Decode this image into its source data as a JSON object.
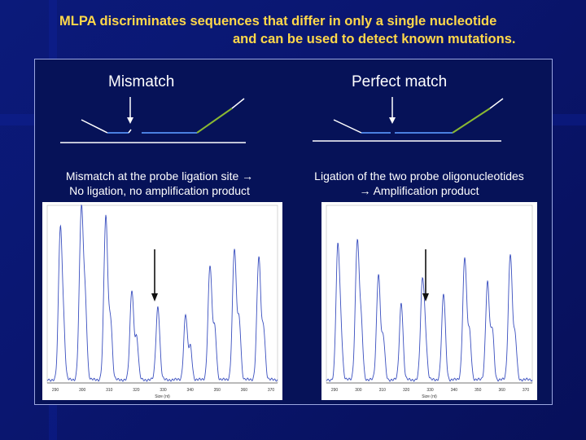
{
  "slide": {
    "title_line1": "MLPA discriminates sequences that differ in only a single nucleotide",
    "title_line2": "and can be used to detect known mutations."
  },
  "left": {
    "heading": "Mismatch",
    "caption_line1": "Mismatch at the probe ligation site →",
    "caption_line2": "No ligation, no amplification product",
    "plot": {
      "tick_labels": [
        "290",
        "300",
        "310",
        "320",
        "330",
        "340",
        "350",
        "360",
        "370"
      ],
      "axis_label": "Size (nt)"
    }
  },
  "right": {
    "heading": "Perfect match",
    "caption_line1": "Ligation of the two probe oligonucleotides",
    "caption_line2": "→ Amplification product",
    "plot": {
      "tick_labels": [
        "290",
        "300",
        "310",
        "320",
        "330",
        "340",
        "350",
        "360",
        "370"
      ],
      "axis_label": "Size (nt)"
    }
  },
  "colors": {
    "title": "#ffd84a",
    "probe_blue": "#4a7fe0",
    "probe_green": "#8ab832",
    "trace": "#3a4fbf"
  }
}
